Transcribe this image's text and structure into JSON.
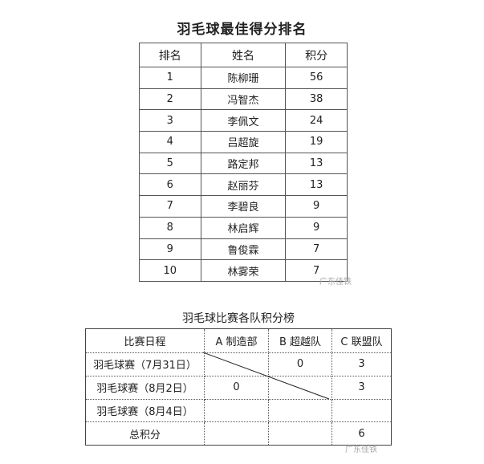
{
  "ranking": {
    "title": "羽毛球最佳得分排名",
    "headers": [
      "排名",
      "姓名",
      "积分"
    ],
    "rows": [
      [
        "1",
        "陈柳珊",
        "56"
      ],
      [
        "2",
        "冯智杰",
        "38"
      ],
      [
        "3",
        "李佩文",
        "24"
      ],
      [
        "4",
        "吕超旋",
        "19"
      ],
      [
        "5",
        "路定邦",
        "13"
      ],
      [
        "6",
        "赵丽芬",
        "13"
      ],
      [
        "7",
        "李碧良",
        "9"
      ],
      [
        "8",
        "林启辉",
        "9"
      ],
      [
        "9",
        "鲁俊霖",
        "7"
      ],
      [
        "10",
        "林雾荣",
        "7"
      ]
    ]
  },
  "standings": {
    "title": "羽毛球比赛各队积分榜",
    "headers": [
      "比赛日程",
      "A 制造部",
      "B 超越队",
      "C 联盟队"
    ],
    "rows": [
      [
        "羽毛球赛（7月31日）",
        "",
        "0",
        "3"
      ],
      [
        "羽毛球赛（8月2日）",
        "0",
        "",
        "3"
      ],
      [
        "羽毛球赛（8月4日）",
        "",
        "",
        ""
      ],
      [
        "总积分",
        "",
        "",
        "6"
      ]
    ]
  },
  "watermark": "广东佳铁"
}
